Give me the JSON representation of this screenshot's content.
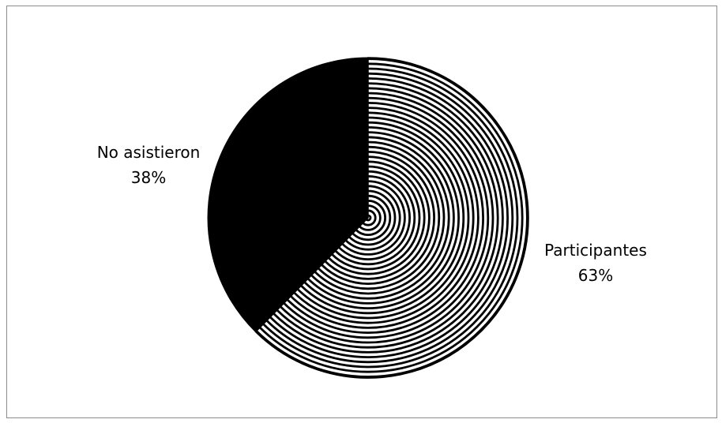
{
  "chart_data": {
    "type": "pie",
    "categories": [
      "Participantes",
      "No asistieron"
    ],
    "values": [
      63,
      38
    ],
    "labels": [
      {
        "name": "Participantes",
        "percent": "63%"
      },
      {
        "name": "No asistieron",
        "percent": "38%"
      }
    ],
    "slice_styles": [
      {
        "fill": "#000000",
        "pattern": "concentric-rings"
      },
      {
        "fill": "#000000",
        "pattern": "solid"
      }
    ],
    "colors": {
      "frame_border": "#8c8c8c",
      "background": "#ffffff",
      "ink": "#000000"
    },
    "legend": "none"
  }
}
